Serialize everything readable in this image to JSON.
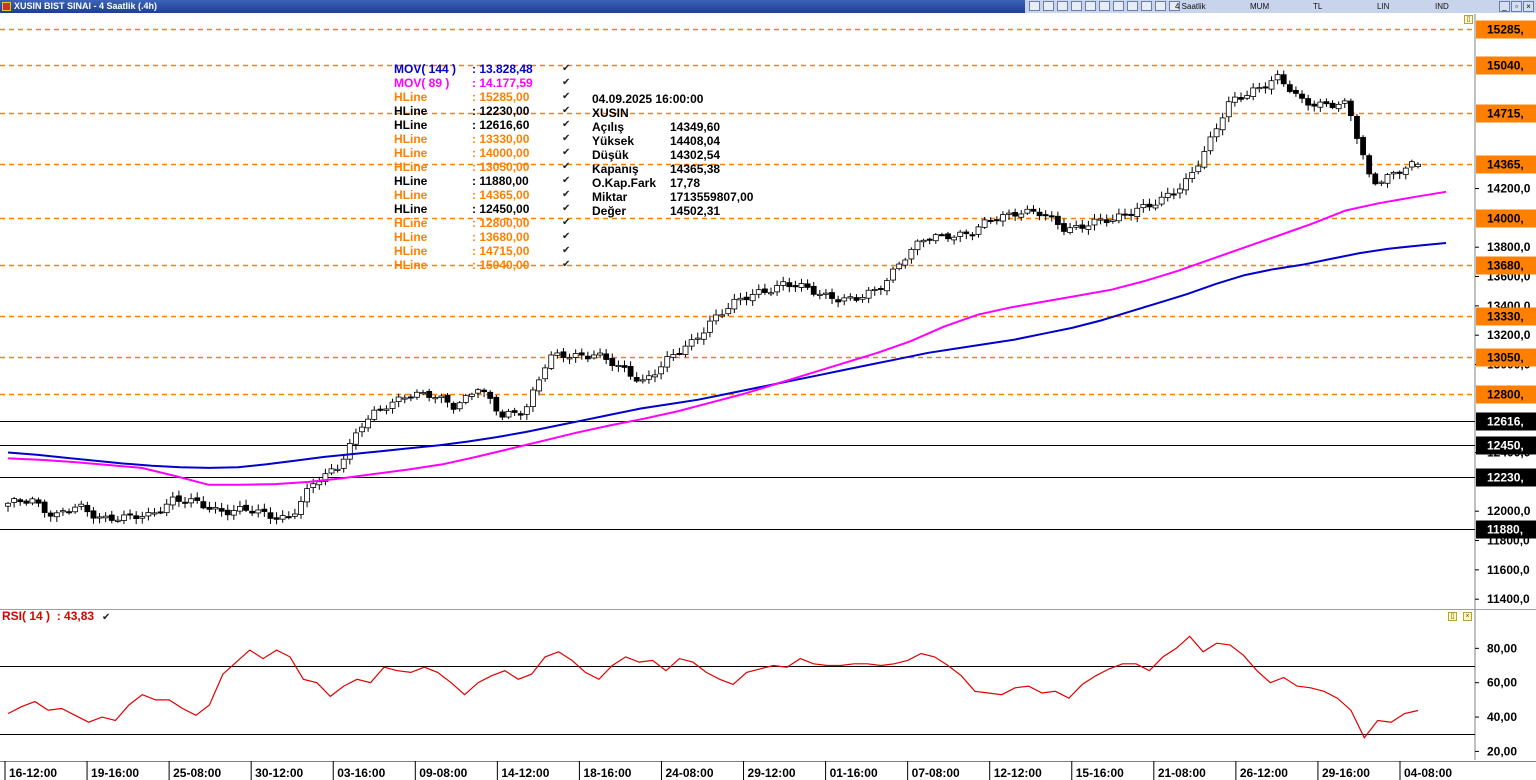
{
  "window": {
    "title": "XUSIN BIST SINAI - 4 Saatlik (.4h)"
  },
  "toolbar": {
    "menu": [
      "4 Saatlik",
      "MUM",
      "TL",
      "LIN",
      "IND"
    ],
    "icons": [
      "cursor-icon",
      "pencil-icon",
      "line-icon",
      "zoom-icon",
      "grid-icon",
      "color-icon",
      "pin-icon",
      "settings-icon",
      "table-icon",
      "refresh-icon",
      "print-icon"
    ]
  },
  "window_controls": [
    "minimize-icon",
    "restore-icon",
    "close-icon"
  ],
  "colors": {
    "mov144": "#0000cc",
    "mov89": "#ff00ff",
    "hline_orange": "#ff8000",
    "hline_black": "#000000",
    "rsi": "#e00000",
    "price_tag_orange_bg": "#ff8000",
    "price_tag_black_bg": "#000000"
  },
  "legend": [
    {
      "name": "MOV( 144 )",
      "value": ": 13.828,48",
      "color": "#0000cc"
    },
    {
      "name": "MOV( 89 )",
      "value": ": 14.177,59",
      "color": "#ff00ff"
    },
    {
      "name": "HLine",
      "value": ": 15285,00",
      "color": "#ff8000"
    },
    {
      "name": "HLine",
      "value": ": 12230,00",
      "color": "#000000"
    },
    {
      "name": "HLine",
      "value": ": 12616,60",
      "color": "#000000"
    },
    {
      "name": "HLine",
      "value": ": 13330,00",
      "color": "#ff8000"
    },
    {
      "name": "HLine",
      "value": ": 14000,00",
      "color": "#ff8000"
    },
    {
      "name": "HLine",
      "value": ": 13050,00",
      "color": "#ff8000"
    },
    {
      "name": "HLine",
      "value": ": 11880,00",
      "color": "#000000"
    },
    {
      "name": "HLine",
      "value": ": 14365,00",
      "color": "#ff8000"
    },
    {
      "name": "HLine",
      "value": ": 12450,00",
      "color": "#000000"
    },
    {
      "name": "HLine",
      "value": ": 12800,00",
      "color": "#ff8000"
    },
    {
      "name": "HLine",
      "value": ": 13680,00",
      "color": "#ff8000"
    },
    {
      "name": "HLine",
      "value": ": 14715,00",
      "color": "#ff8000"
    },
    {
      "name": "HLine",
      "value": ": 15040,00",
      "color": "#ff8000"
    }
  ],
  "legend_check": "✔",
  "info": {
    "datetime": "04.09.2025  16:00:00",
    "symbol": "XUSIN",
    "rows": [
      {
        "k": "Açılış",
        "v": "14349,60"
      },
      {
        "k": "Yüksek",
        "v": "14408,04"
      },
      {
        "k": "Düşük",
        "v": "14302,54"
      },
      {
        "k": "Kapanış",
        "v": "14365,38"
      },
      {
        "k": "O.Kap.Fark",
        "v": "17,78"
      },
      {
        "k": "Miktar",
        "v": "1713559807,00"
      },
      {
        "k": "Değer",
        "v": "14502,31"
      }
    ]
  },
  "rsi_label": {
    "name": "RSI( 14 )",
    "value": ": 43,83"
  },
  "chart_data": [
    {
      "type": "candlestick",
      "ylim": [
        11340,
        15390
      ],
      "y_ticks": [
        {
          "v": 14200,
          "label": "14200,0"
        },
        {
          "v": 13800,
          "label": "13800,0"
        },
        {
          "v": 13600,
          "label": "13600,0"
        },
        {
          "v": 13400,
          "label": "13400,0"
        },
        {
          "v": 13200,
          "label": "13200,0"
        },
        {
          "v": 13000,
          "label": "13000,0"
        },
        {
          "v": 12400,
          "label": "12400,0"
        },
        {
          "v": 12000,
          "label": "12000,0"
        },
        {
          "v": 11800,
          "label": "11800,0"
        },
        {
          "v": 11600,
          "label": "11600,0"
        },
        {
          "v": 11400,
          "label": "11400,0"
        }
      ],
      "x_labels": [
        "16-12:00",
        "19-16:00",
        "25-08:00",
        "30-12:00",
        "03-16:00",
        "09-08:00",
        "14-12:00",
        "18-16:00",
        "24-08:00",
        "29-12:00",
        "01-16:00",
        "07-08:00",
        "12-12:00",
        "15-16:00",
        "21-08:00",
        "26-12:00",
        "29-16:00",
        "04-08:00"
      ],
      "hlines": [
        {
          "v": 15285,
          "label": "15285,",
          "style": "orange"
        },
        {
          "v": 15040,
          "label": "15040,",
          "style": "orange"
        },
        {
          "v": 14715,
          "label": "14715,",
          "style": "orange"
        },
        {
          "v": 14365,
          "label": "14365,",
          "style": "orange"
        },
        {
          "v": 14000,
          "label": "14000,",
          "style": "orange"
        },
        {
          "v": 13680,
          "label": "13680,",
          "style": "orange"
        },
        {
          "v": 13330,
          "label": "13330,",
          "style": "orange"
        },
        {
          "v": 13050,
          "label": "13050,",
          "style": "orange"
        },
        {
          "v": 12800,
          "label": "12800,",
          "style": "orange"
        },
        {
          "v": 12616.6,
          "label": "12616,",
          "style": "black"
        },
        {
          "v": 12450,
          "label": "12450,",
          "style": "black"
        },
        {
          "v": 12230,
          "label": "12230,",
          "style": "black"
        },
        {
          "v": 11880,
          "label": "11880,",
          "style": "black"
        }
      ],
      "close_anchors": [
        12040,
        12090,
        11960,
        12030,
        11960,
        11945,
        11975,
        12080,
        12050,
        12010,
        12005,
        11975,
        11960,
        12180,
        12305,
        12580,
        12705,
        12810,
        12780,
        12720,
        12850,
        12640,
        12700,
        13040,
        13060,
        13080,
        12970,
        12890,
        13020,
        13130,
        13320,
        13420,
        13500,
        13550,
        13510,
        13470,
        13430,
        13510,
        13710,
        13850,
        13890,
        13890,
        14000,
        14050,
        14020,
        13930,
        13960,
        13980,
        14070,
        14100,
        14220,
        14480,
        14780,
        14880,
        14950,
        14800,
        14780,
        14760,
        14250,
        14300,
        14365
      ],
      "series": [
        {
          "name": "MOV( 144 )",
          "values": [
            12400,
            12385,
            12365,
            12345,
            12325,
            12310,
            12300,
            12295,
            12300,
            12320,
            12345,
            12370,
            12390,
            12410,
            12430,
            12450,
            12475,
            12505,
            12540,
            12580,
            12620,
            12660,
            12700,
            12730,
            12760,
            12800,
            12840,
            12880,
            12920,
            12960,
            13000,
            13040,
            13080,
            13110,
            13140,
            13170,
            13210,
            13250,
            13300,
            13360,
            13420,
            13480,
            13550,
            13610,
            13650,
            13680,
            13720,
            13760,
            13790,
            13810,
            13828.48
          ]
        },
        {
          "name": "MOV( 89 )",
          "values": [
            12360,
            12350,
            12335,
            12315,
            12295,
            12240,
            12180,
            12180,
            12185,
            12200,
            12225,
            12255,
            12285,
            12320,
            12370,
            12425,
            12480,
            12535,
            12585,
            12630,
            12680,
            12740,
            12800,
            12870,
            12940,
            13010,
            13080,
            13160,
            13260,
            13340,
            13390,
            13430,
            13470,
            13510,
            13570,
            13640,
            13720,
            13800,
            13880,
            13960,
            14050,
            14100,
            14140,
            14177.59
          ]
        }
      ]
    },
    {
      "type": "line",
      "ylim": [
        15,
        93
      ],
      "y_ticks": [
        {
          "v": 80,
          "label": "80,00"
        },
        {
          "v": 60,
          "label": "60,00"
        },
        {
          "v": 40,
          "label": "40,00"
        },
        {
          "v": 20,
          "label": "20,00"
        }
      ],
      "ref_lines": [
        70,
        30
      ],
      "series": [
        {
          "name": "RSI( 14 )",
          "values": [
            42,
            46,
            49,
            44,
            45,
            41,
            37,
            40,
            38,
            47,
            53,
            50,
            50,
            45,
            41,
            47,
            65,
            72,
            79,
            74,
            79,
            75,
            62,
            60,
            52,
            58,
            62,
            60,
            69,
            67,
            66,
            69,
            66,
            60,
            53,
            60,
            64,
            67,
            62,
            65,
            75,
            78,
            73,
            66,
            62,
            70,
            75,
            72,
            73,
            67,
            74,
            72,
            66,
            62,
            59,
            66,
            68,
            70,
            69,
            74,
            71,
            70,
            70,
            71,
            71,
            70,
            71,
            73,
            77,
            75,
            70,
            64,
            55,
            54,
            53,
            57,
            58,
            54,
            55,
            51,
            59,
            64,
            68,
            71,
            71,
            67,
            75,
            80,
            87,
            78,
            83,
            82,
            76,
            67,
            60,
            63,
            58,
            57,
            55,
            51,
            44,
            28,
            38,
            37,
            42,
            43.83
          ]
        }
      ]
    }
  ]
}
